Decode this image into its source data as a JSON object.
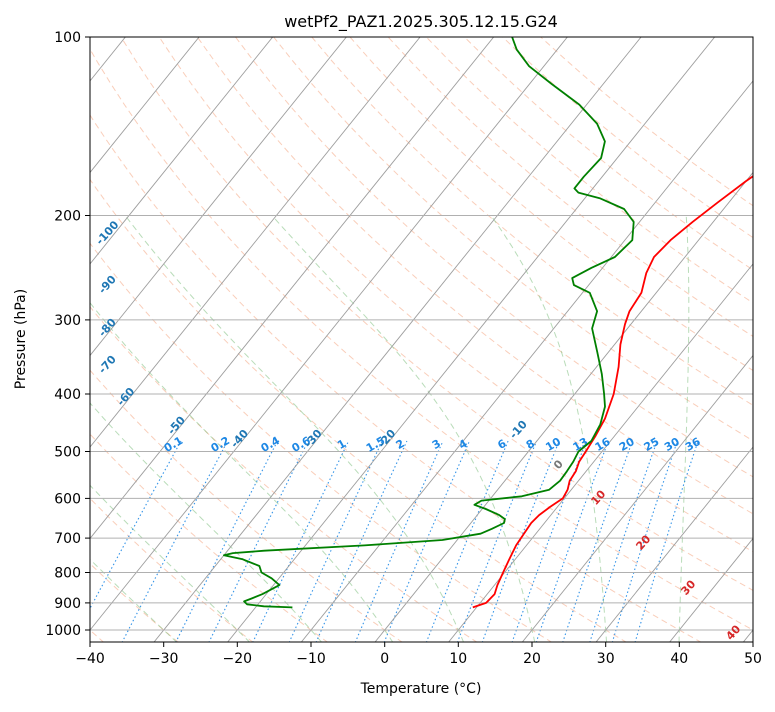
{
  "chart_data": {
    "type": "line",
    "subtype": "skew-T log-P sounding",
    "title": "wetPf2_PAZ1.2025.305.12.15.G24",
    "xlabel": "Temperature (°C)",
    "ylabel": "Pressure (hPa)",
    "xlim": [
      -40,
      50
    ],
    "ylim": [
      1050,
      100
    ],
    "x_ticks": [
      -40,
      -30,
      -20,
      -10,
      0,
      10,
      20,
      30,
      40,
      50
    ],
    "y_ticks": [
      100,
      200,
      300,
      400,
      500,
      600,
      700,
      800,
      900,
      1000
    ],
    "series": [
      {
        "name": "Temperature",
        "color": "#ff0000",
        "points": [
          [
            916,
            9.5
          ],
          [
            900,
            10.8
          ],
          [
            870,
            11.0
          ],
          [
            840,
            10.4
          ],
          [
            800,
            9.8
          ],
          [
            760,
            9.2
          ],
          [
            720,
            8.6
          ],
          [
            690,
            8.4
          ],
          [
            660,
            8.2
          ],
          [
            640,
            8.4
          ],
          [
            620,
            9.0
          ],
          [
            600,
            9.8
          ],
          [
            580,
            9.5
          ],
          [
            560,
            8.8
          ],
          [
            540,
            8.6
          ],
          [
            520,
            8.0
          ],
          [
            500,
            7.8
          ],
          [
            470,
            7.4
          ],
          [
            440,
            6.8
          ],
          [
            400,
            5.3
          ],
          [
            360,
            3.0
          ],
          [
            330,
            0.8
          ],
          [
            305,
            -0.8
          ],
          [
            290,
            -1.6
          ],
          [
            270,
            -2.0
          ],
          [
            250,
            -3.5
          ],
          [
            235,
            -4.2
          ],
          [
            220,
            -3.8
          ],
          [
            205,
            -2.8
          ],
          [
            190,
            -1.5
          ],
          [
            175,
            0.0
          ],
          [
            160,
            2.0
          ],
          [
            145,
            5.0
          ],
          [
            135,
            9.0
          ],
          [
            125,
            12.5
          ],
          [
            118,
            13.5
          ],
          [
            110,
            15.5
          ],
          [
            100,
            19.5
          ]
        ]
      },
      {
        "name": "Dewpoint",
        "color": "#008000",
        "points": [
          [
            916,
            -15.0
          ],
          [
            912,
            -19.0
          ],
          [
            905,
            -21.5
          ],
          [
            895,
            -22.2
          ],
          [
            885,
            -21.5
          ],
          [
            870,
            -20.5
          ],
          [
            840,
            -19.2
          ],
          [
            818,
            -21.0
          ],
          [
            800,
            -23.0
          ],
          [
            780,
            -24.0
          ],
          [
            760,
            -27.0
          ],
          [
            748,
            -30.0
          ],
          [
            742,
            -29.0
          ],
          [
            735,
            -25.0
          ],
          [
            720,
            -12.0
          ],
          [
            705,
            -2.0
          ],
          [
            688,
            2.5
          ],
          [
            675,
            3.5
          ],
          [
            660,
            4.5
          ],
          [
            650,
            4.2
          ],
          [
            640,
            3.0
          ],
          [
            625,
            0.5
          ],
          [
            615,
            -1.5
          ],
          [
            605,
            -1.0
          ],
          [
            595,
            4.0
          ],
          [
            580,
            7.0
          ],
          [
            560,
            7.5
          ],
          [
            540,
            7.4
          ],
          [
            520,
            7.2
          ],
          [
            500,
            6.8
          ],
          [
            480,
            7.4
          ],
          [
            450,
            6.8
          ],
          [
            420,
            5.5
          ],
          [
            400,
            4.0
          ],
          [
            370,
            1.5
          ],
          [
            340,
            -1.5
          ],
          [
            310,
            -4.8
          ],
          [
            290,
            -6.0
          ],
          [
            270,
            -9.0
          ],
          [
            262,
            -12.0
          ],
          [
            255,
            -13.0
          ],
          [
            245,
            -11.5
          ],
          [
            235,
            -9.5
          ],
          [
            220,
            -9.0
          ],
          [
            205,
            -10.8
          ],
          [
            195,
            -13.5
          ],
          [
            187,
            -18.0
          ],
          [
            183,
            -21.5
          ],
          [
            180,
            -22.5
          ],
          [
            172,
            -22.5
          ],
          [
            160,
            -22.2
          ],
          [
            150,
            -23.5
          ],
          [
            140,
            -26.5
          ],
          [
            130,
            -31.0
          ],
          [
            120,
            -37.0
          ],
          [
            112,
            -42.0
          ],
          [
            105,
            -45.5
          ],
          [
            100,
            -47.5
          ]
        ]
      }
    ],
    "background_lines": {
      "isotherms_C": [
        -150,
        -140,
        -130,
        -120,
        -110,
        -100,
        -90,
        -80,
        -70,
        -60,
        -50,
        -40,
        -30,
        -20,
        -10,
        0,
        10,
        20,
        30,
        40,
        50
      ],
      "dry_adiabats_C": [
        -40,
        -30,
        -20,
        -10,
        0,
        10,
        20,
        30,
        40,
        50,
        60,
        70,
        80,
        90,
        100,
        110,
        120,
        130,
        140,
        150,
        160,
        170
      ],
      "moist_adiabats_C": [
        -30,
        -20,
        -10,
        0,
        10,
        20,
        30,
        40
      ],
      "mixing_ratios_gkg": [
        0.1,
        0.2,
        0.4,
        0.6,
        1,
        1.5,
        2,
        3,
        4,
        6,
        8,
        10,
        13,
        16,
        20,
        25,
        30,
        36
      ]
    },
    "isotherm_labels": [
      "-100",
      "-90",
      "-80",
      "-70",
      "-60",
      "-50",
      "-40",
      "-30",
      "-20",
      "-10",
      "0",
      "10",
      "20",
      "30",
      "40"
    ],
    "mixing_ratio_labels": [
      "0.1",
      "0.2",
      "0.4",
      "0.6",
      "1",
      "1.5",
      "2",
      "3",
      "4",
      "6",
      "8",
      "10",
      "13",
      "16",
      "20",
      "25",
      "30",
      "36"
    ]
  }
}
